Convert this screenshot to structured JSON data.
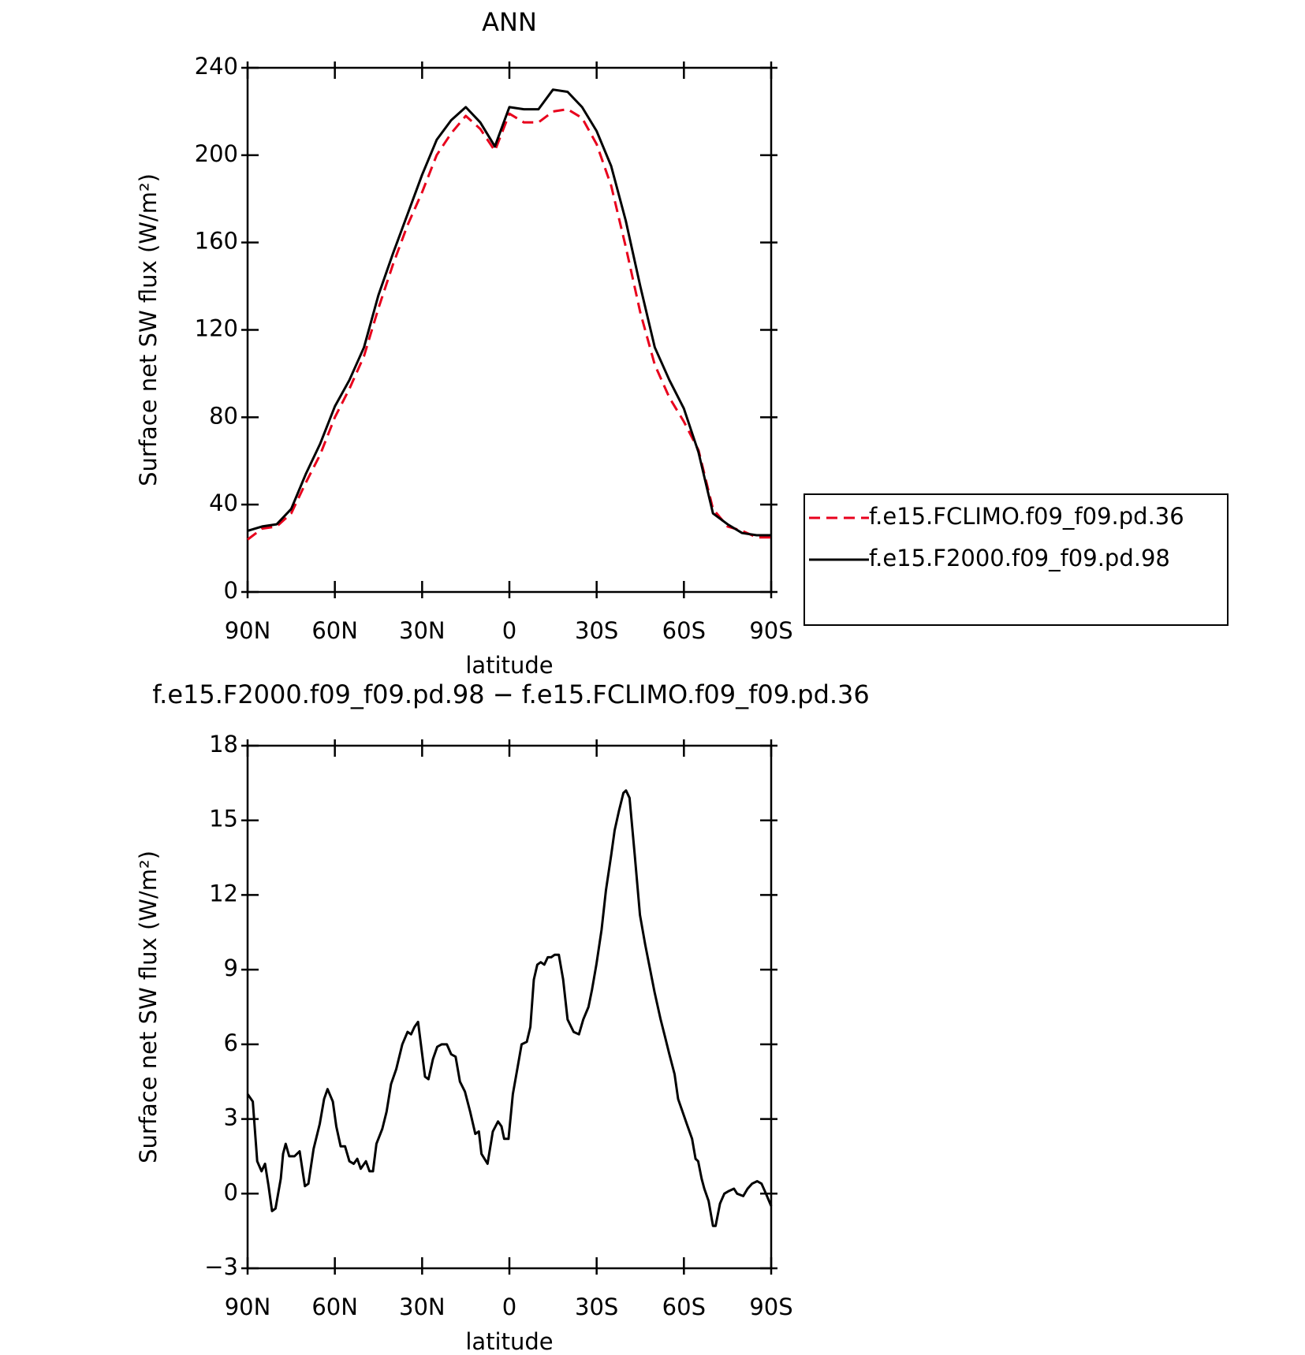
{
  "chart_data": [
    {
      "type": "line",
      "title": "ANN",
      "xlabel": "latitude",
      "ylabel": "Surface net SW flux (W/m²)",
      "x": [
        90,
        85,
        80,
        75,
        70,
        65,
        60,
        55,
        50,
        45,
        40,
        35,
        30,
        25,
        20,
        15,
        10,
        5,
        0,
        -5,
        -10,
        -15,
        -20,
        -25,
        -30,
        -35,
        -40,
        -45,
        -50,
        -55,
        -60,
        -65,
        -70,
        -75,
        -80,
        -85,
        -90
      ],
      "series": [
        {
          "name": "f.e15.FCLIMO.f09_f09.pd.36",
          "color": "#e8001c",
          "dash": true,
          "values": [
            24,
            29,
            30,
            36,
            50,
            63,
            80,
            93,
            108,
            130,
            150,
            168,
            183,
            200,
            210,
            218,
            212,
            202,
            219,
            215,
            215,
            220,
            221,
            217,
            205,
            186,
            158,
            128,
            104,
            89,
            78,
            65,
            38,
            30,
            28,
            25,
            25
          ]
        },
        {
          "name": "f.e15.F2000.f09_f09.pd.98",
          "color": "#000000",
          "dash": false,
          "values": [
            28,
            30,
            31,
            38,
            54,
            68,
            85,
            97,
            112,
            136,
            155,
            173,
            191,
            207,
            216,
            222,
            215,
            204,
            222,
            221,
            221,
            230,
            229,
            222,
            211,
            195,
            170,
            140,
            112,
            97,
            84,
            64,
            36,
            31,
            27,
            26,
            26
          ]
        }
      ],
      "xlim": [
        90,
        -90
      ],
      "xticks": [
        {
          "value": 90,
          "label": "90N"
        },
        {
          "value": 60,
          "label": "60N"
        },
        {
          "value": 30,
          "label": "30N"
        },
        0,
        {
          "value": -30,
          "label": "30S"
        },
        {
          "value": -60,
          "label": "60S"
        },
        {
          "value": -90,
          "label": "90S"
        }
      ],
      "ylim": [
        0,
        240
      ],
      "yticks": [
        0,
        40,
        80,
        120,
        160,
        200,
        240
      ],
      "legend": "right"
    },
    {
      "type": "line",
      "title": "f.e15.F2000.f09_f09.pd.98 − f.e15.FCLIMO.f09_f09.pd.36",
      "xlabel": "latitude",
      "ylabel": "Surface net SW flux (W/m²)",
      "x": [
        90,
        88.2,
        86.7,
        85.2,
        84.0,
        82.8,
        81.6,
        80.4,
        78.6,
        77.8,
        76.9,
        75.7,
        73.9,
        72.1,
        70.3,
        69.1,
        67.3,
        65.2,
        63.7,
        62.5,
        60.7,
        59.5,
        58.0,
        56.5,
        55.0,
        53.5,
        52.3,
        51.1,
        49.3,
        48.1,
        46.9,
        45.7,
        43.7,
        42.2,
        40.7,
        38.9,
        36.8,
        35.0,
        33.8,
        32.6,
        31.4,
        30.2,
        29.0,
        27.8,
        26.3,
        24.8,
        23.3,
        21.5,
        20.0,
        18.5,
        17.0,
        15.3,
        13.5,
        11.7,
        10.5,
        9.6,
        7.5,
        5.7,
        3.9,
        2.7,
        1.8,
        0.3,
        -1.2,
        -2.7,
        -4.2,
        -6.0,
        -7.2,
        -8.4,
        -9.6,
        -10.8,
        -12.0,
        -13.2,
        -14.4,
        -15.6,
        -17.0,
        -18.5,
        -20.0,
        -22.1,
        -23.9,
        -25.4,
        -27.2,
        -28.4,
        -29.9,
        -31.7,
        -33.2,
        -35.0,
        -36.2,
        -37.7,
        -39.2,
        -40.1,
        -41.3,
        -43.1,
        -44.9,
        -46.7,
        -48.4,
        -49.9,
        -52.0,
        -53.5,
        -55.0,
        -56.8,
        -58.0,
        -59.2,
        -61.0,
        -62.8,
        -64.0,
        -64.9,
        -66.1,
        -67.0,
        -68.5,
        -70.0,
        -70.9,
        -72.4,
        -73.9,
        -75.4,
        -77.2,
        -78.3,
        -80.4,
        -81.9,
        -83.4,
        -85.2,
        -86.7,
        -88.2,
        -90
      ],
      "values": [
        4.0,
        3.7,
        1.3,
        0.9,
        1.2,
        0.3,
        -0.7,
        -0.6,
        0.6,
        1.6,
        2.0,
        1.5,
        1.5,
        1.7,
        0.3,
        0.4,
        1.8,
        2.8,
        3.8,
        4.2,
        3.7,
        2.7,
        1.9,
        1.9,
        1.3,
        1.2,
        1.4,
        1.0,
        1.3,
        0.9,
        0.9,
        2.0,
        2.6,
        3.3,
        4.4,
        5.0,
        6.0,
        6.5,
        6.4,
        6.7,
        6.9,
        5.8,
        4.7,
        4.6,
        5.4,
        5.9,
        6.0,
        6.0,
        5.6,
        5.5,
        4.5,
        4.1,
        3.3,
        2.4,
        2.5,
        1.6,
        1.2,
        2.5,
        2.9,
        2.7,
        2.2,
        2.2,
        4.0,
        5.0,
        6.0,
        6.1,
        6.7,
        8.6,
        9.2,
        9.3,
        9.2,
        9.5,
        9.5,
        9.6,
        9.6,
        8.6,
        7.0,
        6.5,
        6.4,
        7.0,
        7.5,
        8.2,
        9.2,
        10.6,
        12.2,
        13.6,
        14.6,
        15.4,
        16.1,
        16.2,
        15.9,
        13.6,
        11.2,
        10.0,
        9.0,
        8.1,
        7.0,
        6.3,
        5.6,
        4.8,
        3.8,
        3.4,
        2.8,
        2.2,
        1.4,
        1.3,
        0.6,
        0.2,
        -0.3,
        -1.3,
        -1.3,
        -0.4,
        0.0,
        0.1,
        0.2,
        0.0,
        -0.1,
        0.2,
        0.4,
        0.5,
        0.4,
        0.0,
        -0.5
      ],
      "color": "#000000",
      "xlim": [
        90,
        -90
      ],
      "xticks": [
        {
          "value": 90,
          "label": "90N"
        },
        {
          "value": 60,
          "label": "60N"
        },
        {
          "value": 30,
          "label": "30N"
        },
        0,
        {
          "value": -30,
          "label": "30S"
        },
        {
          "value": -60,
          "label": "60S"
        },
        {
          "value": -90,
          "label": "90S"
        }
      ],
      "ylim": [
        -3,
        18
      ],
      "yticks": [
        {
          "value": -3,
          "label": "−3"
        },
        0,
        3,
        6,
        9,
        12,
        15,
        18
      ]
    }
  ]
}
